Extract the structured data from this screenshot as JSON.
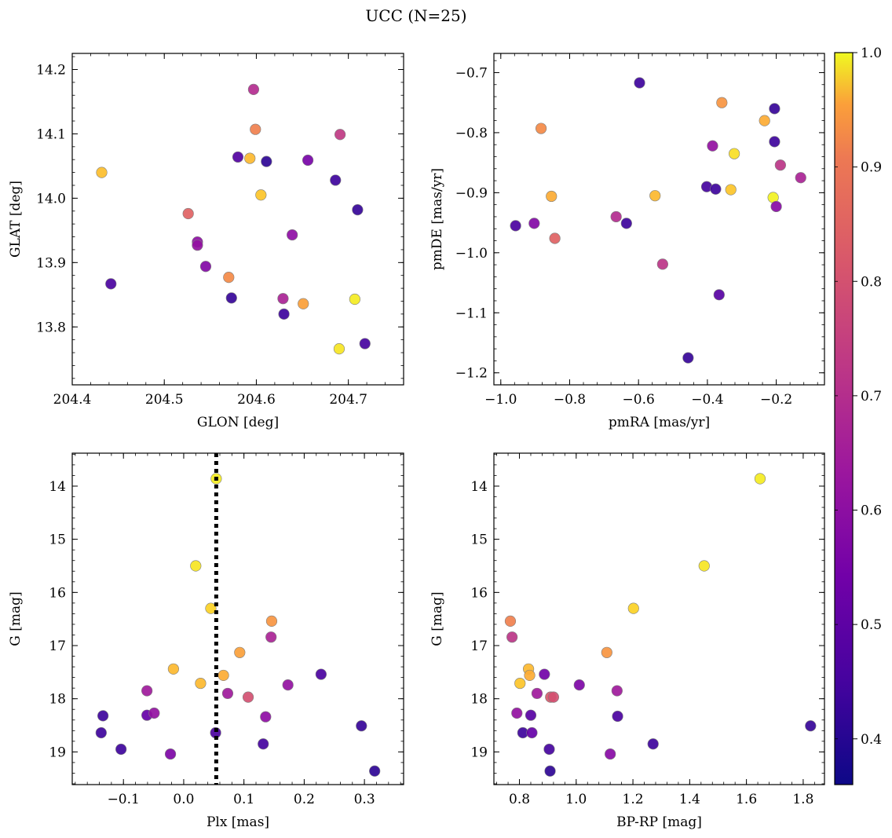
{
  "figure": {
    "title": "UCC (N=25)"
  },
  "colors": {
    "colormap": "plasma",
    "marker_edge": "#7f7f7f",
    "vline": "#000000"
  },
  "chart_data": [
    {
      "type": "scatter",
      "xlabel": "GLON [deg]",
      "ylabel": "GLAT [deg]",
      "xlim": [
        204.4,
        204.76
      ],
      "ylim": [
        13.71,
        14.225
      ],
      "xticks": [
        204.4,
        204.5,
        204.6,
        204.7
      ],
      "yticks": [
        13.8,
        13.9,
        14.0,
        14.1,
        14.2
      ],
      "x": [
        204.432,
        204.442,
        204.526,
        204.536,
        204.536,
        204.545,
        204.57,
        204.573,
        204.58,
        204.593,
        204.597,
        204.599,
        204.605,
        204.611,
        204.629,
        204.63,
        204.639,
        204.651,
        204.656,
        204.686,
        204.69,
        204.691,
        204.707,
        204.71,
        204.718
      ],
      "y": [
        14.04,
        13.867,
        13.976,
        13.932,
        13.927,
        13.894,
        13.877,
        13.845,
        14.064,
        14.062,
        14.169,
        14.107,
        14.005,
        14.057,
        13.844,
        13.82,
        13.943,
        13.836,
        14.059,
        14.028,
        13.766,
        14.099,
        13.843,
        13.982,
        13.774
      ],
      "membership_prob": [
        0.91,
        0.44,
        0.74,
        0.55,
        0.56,
        0.53,
        0.82,
        0.41,
        0.45,
        0.9,
        0.62,
        0.8,
        0.92,
        0.4,
        0.6,
        0.42,
        0.55,
        0.86,
        0.51,
        0.42,
        0.97,
        0.65,
        0.98,
        0.41,
        0.43
      ]
    },
    {
      "type": "scatter",
      "xlabel": "pmRA [mas/yr]",
      "ylabel": "pmDE [mas/yr]",
      "xlim": [
        -1.02,
        -0.06
      ],
      "ylim": [
        -1.22,
        -0.668
      ],
      "xticks": [
        -1.0,
        -0.8,
        -0.6,
        -0.4,
        -0.2
      ],
      "yticks": [
        -1.2,
        -1.1,
        -1.0,
        -0.9,
        -0.8,
        -0.7
      ],
      "x": [
        -0.957,
        -0.903,
        -0.883,
        -0.853,
        -0.843,
        -0.665,
        -0.635,
        -0.597,
        -0.552,
        -0.53,
        -0.456,
        -0.402,
        -0.385,
        -0.376,
        -0.366,
        -0.358,
        -0.332,
        -0.322,
        -0.234,
        -0.209,
        -0.205,
        -0.205,
        -0.2,
        -0.188,
        -0.129
      ],
      "y": [
        -0.955,
        -0.951,
        -0.793,
        -0.906,
        -0.976,
        -0.94,
        -0.951,
        -0.717,
        -0.905,
        -1.019,
        -1.175,
        -0.89,
        -0.822,
        -0.894,
        -1.07,
        -0.75,
        -0.895,
        -0.835,
        -0.78,
        -0.908,
        -0.76,
        -0.815,
        -0.923,
        -0.854,
        -0.875
      ],
      "membership_prob": [
        0.44,
        0.53,
        0.82,
        0.88,
        0.74,
        0.62,
        0.42,
        0.42,
        0.9,
        0.64,
        0.41,
        0.43,
        0.56,
        0.42,
        0.46,
        0.84,
        0.92,
        0.96,
        0.88,
        0.99,
        0.41,
        0.42,
        0.54,
        0.64,
        0.6
      ]
    },
    {
      "type": "scatter",
      "xlabel": "Plx [mas]",
      "ylabel": "G [mag]",
      "xlim": [
        -0.185,
        0.365
      ],
      "ylim": [
        19.615,
        13.38
      ],
      "y_inverted": true,
      "xticks": [
        -0.1,
        0.0,
        0.1,
        0.2,
        0.3
      ],
      "yticks": [
        14,
        15,
        16,
        17,
        18,
        19
      ],
      "vline_x": 0.054,
      "x": [
        -0.137,
        -0.134,
        -0.104,
        -0.061,
        -0.061,
        -0.049,
        -0.022,
        -0.017,
        0.02,
        0.028,
        0.045,
        0.053,
        0.054,
        0.066,
        0.073,
        0.093,
        0.107,
        0.132,
        0.136,
        0.145,
        0.146,
        0.173,
        0.228,
        0.295,
        0.317
      ],
      "y": [
        18.64,
        18.32,
        18.95,
        17.85,
        18.31,
        18.27,
        19.04,
        17.44,
        15.5,
        17.71,
        16.3,
        18.64,
        13.86,
        17.56,
        17.9,
        17.13,
        17.97,
        18.85,
        18.34,
        16.84,
        16.54,
        17.74,
        17.54,
        18.51,
        19.36
      ],
      "membership_prob": [
        0.42,
        0.42,
        0.42,
        0.58,
        0.48,
        0.56,
        0.52,
        0.9,
        0.97,
        0.9,
        0.94,
        0.44,
        0.98,
        0.88,
        0.58,
        0.86,
        0.7,
        0.43,
        0.55,
        0.6,
        0.84,
        0.56,
        0.44,
        0.41,
        0.4
      ]
    },
    {
      "type": "scatter",
      "xlabel": "BP-RP [mag]",
      "ylabel": "G [mag]",
      "xlim": [
        0.71,
        1.875
      ],
      "ylim": [
        19.615,
        13.38
      ],
      "y_inverted": true,
      "xticks": [
        0.8,
        1.0,
        1.2,
        1.4,
        1.6,
        1.8
      ],
      "yticks": [
        14,
        15,
        16,
        17,
        18,
        19
      ],
      "x": [
        0.768,
        0.774,
        0.791,
        0.802,
        0.812,
        0.832,
        0.836,
        0.84,
        0.844,
        0.862,
        0.888,
        0.905,
        0.908,
        0.91,
        1.011,
        1.108,
        1.12,
        1.144,
        1.146,
        1.202,
        1.271,
        1.451,
        1.648,
        1.826,
        0.92
      ],
      "y": [
        16.54,
        16.84,
        18.27,
        17.71,
        18.64,
        17.44,
        17.56,
        18.31,
        18.64,
        17.9,
        17.54,
        18.95,
        19.36,
        17.97,
        17.74,
        17.13,
        19.04,
        17.85,
        18.33,
        16.3,
        18.85,
        15.5,
        13.86,
        18.51,
        17.97
      ],
      "membership_prob": [
        0.8,
        0.64,
        0.56,
        0.92,
        0.42,
        0.9,
        0.88,
        0.46,
        0.48,
        0.58,
        0.5,
        0.43,
        0.4,
        0.72,
        0.52,
        0.84,
        0.54,
        0.58,
        0.44,
        0.94,
        0.42,
        0.97,
        0.98,
        0.41,
        0.7
      ]
    }
  ],
  "colorbar": {
    "min": 0.36,
    "max": 1.0,
    "ticks": [
      "0.4",
      "0.5",
      "0.6",
      "0.7",
      "0.8",
      "0.9",
      "1.0"
    ]
  }
}
